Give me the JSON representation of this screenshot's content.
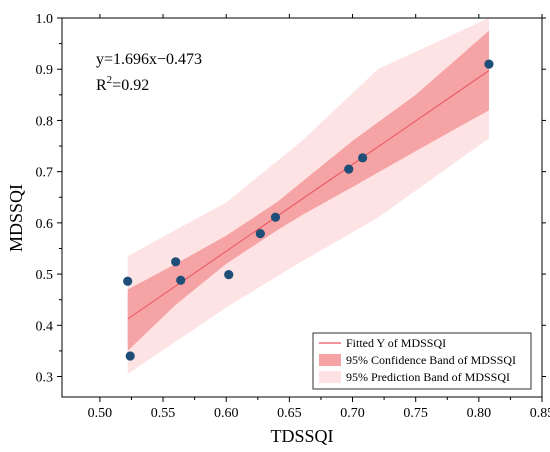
{
  "chart_data": {
    "type": "scatter",
    "xlabel": "TDSSQI",
    "ylabel": "MDSSQI",
    "xlim": [
      0.47,
      0.85
    ],
    "ylim": [
      0.26,
      1.0
    ],
    "xticks": [
      "0.50",
      "0.55",
      "0.60",
      "0.65",
      "0.70",
      "0.75",
      "0.80",
      "0.85"
    ],
    "yticks": [
      "0.3",
      "0.4",
      "0.5",
      "0.6",
      "0.7",
      "0.8",
      "0.9",
      "1.0"
    ],
    "grid": false,
    "points": [
      {
        "x": 0.522,
        "y": 0.486
      },
      {
        "x": 0.524,
        "y": 0.34
      },
      {
        "x": 0.56,
        "y": 0.524
      },
      {
        "x": 0.564,
        "y": 0.488
      },
      {
        "x": 0.602,
        "y": 0.499
      },
      {
        "x": 0.627,
        "y": 0.579
      },
      {
        "x": 0.639,
        "y": 0.611
      },
      {
        "x": 0.697,
        "y": 0.705
      },
      {
        "x": 0.708,
        "y": 0.727
      },
      {
        "x": 0.808,
        "y": 0.91
      }
    ],
    "fit": {
      "slope": 1.696,
      "intercept": -0.473,
      "x_range": [
        0.522,
        0.808
      ],
      "confidence_band": [
        {
          "x": 0.522,
          "lo": 0.35,
          "hi": 0.47
        },
        {
          "x": 0.56,
          "lo": 0.44,
          "hi": 0.52
        },
        {
          "x": 0.6,
          "lo": 0.52,
          "hi": 0.575
        },
        {
          "x": 0.64,
          "lo": 0.585,
          "hi": 0.64
        },
        {
          "x": 0.66,
          "lo": 0.615,
          "hi": 0.68
        },
        {
          "x": 0.7,
          "lo": 0.67,
          "hi": 0.76
        },
        {
          "x": 0.75,
          "lo": 0.74,
          "hi": 0.85
        },
        {
          "x": 0.808,
          "lo": 0.82,
          "hi": 0.975
        }
      ],
      "prediction_band": [
        {
          "x": 0.522,
          "lo": 0.305,
          "hi": 0.535
        },
        {
          "x": 0.6,
          "lo": 0.435,
          "hi": 0.64
        },
        {
          "x": 0.66,
          "lo": 0.525,
          "hi": 0.76
        },
        {
          "x": 0.72,
          "lo": 0.61,
          "hi": 0.9
        },
        {
          "x": 0.808,
          "lo": 0.765,
          "hi": 1.0
        }
      ]
    },
    "annotations": {
      "equation": "y=1.696x−0.473",
      "r2_prefix": "R",
      "r2_sup": "2",
      "r2_suffix": "=0.92"
    },
    "legend": {
      "placement": "bottom-right",
      "items": [
        {
          "label": "Fitted Y of MDSSQI",
          "type": "line",
          "color": "#e8545a"
        },
        {
          "label": "95% Confidence Band of MDSSQI",
          "type": "fill",
          "color": "#f6a3a5"
        },
        {
          "label": "95% Prediction Band of MDSSQI",
          "type": "fill",
          "color": "#fde3e4"
        }
      ]
    },
    "colors": {
      "point": "#1f4e79",
      "fit_line": "#e8545a",
      "confidence": "#f6a3a5",
      "prediction": "#fde3e4"
    }
  }
}
